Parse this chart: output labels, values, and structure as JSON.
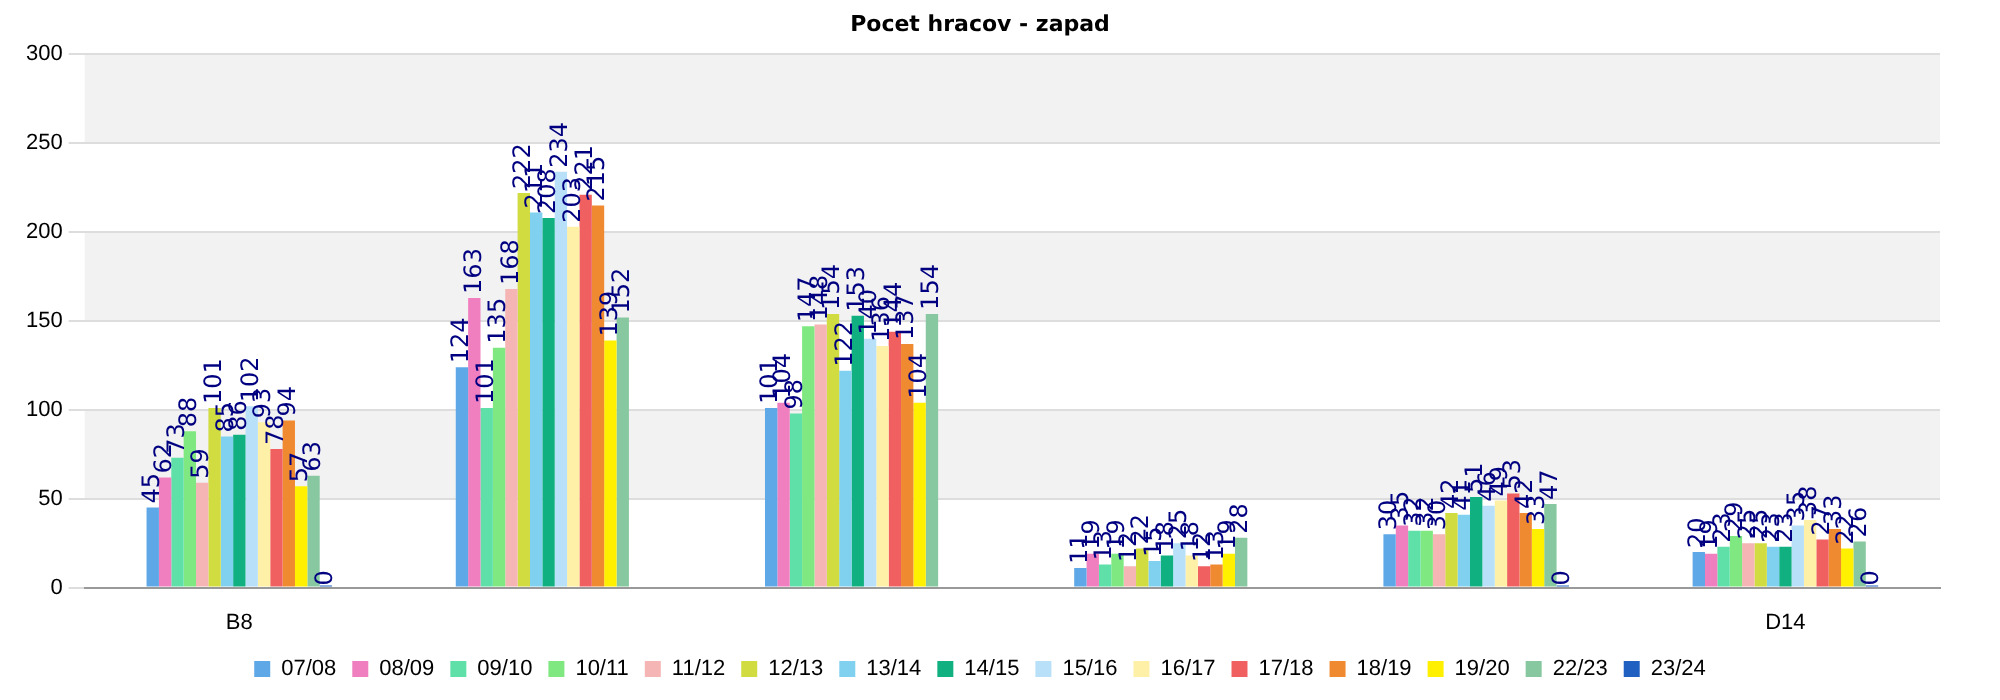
{
  "chart_data": {
    "type": "bar",
    "title": "Pocet hracov - zapad",
    "categories": [
      "B8",
      null,
      null,
      null,
      null,
      "D14"
    ],
    "series": [
      {
        "name": "07/08",
        "color": "#5fa8e8",
        "values": [
          45,
          124,
          101,
          11,
          30,
          20
        ]
      },
      {
        "name": "08/09",
        "color": "#f07fbf",
        "values": [
          62,
          163,
          104,
          19,
          35,
          19
        ]
      },
      {
        "name": "09/10",
        "color": "#5fe0a8",
        "values": [
          73,
          101,
          98,
          13,
          32,
          23
        ]
      },
      {
        "name": "10/11",
        "color": "#80e880",
        "values": [
          88,
          135,
          147,
          19,
          32,
          29
        ]
      },
      {
        "name": "11/12",
        "color": "#f5b5b5",
        "values": [
          59,
          168,
          148,
          12,
          30,
          25
        ]
      },
      {
        "name": "12/13",
        "color": "#d0dc40",
        "values": [
          101,
          222,
          154,
          22,
          42,
          25
        ]
      },
      {
        "name": "13/14",
        "color": "#80d0f0",
        "values": [
          85,
          211,
          122,
          15,
          41,
          23
        ]
      },
      {
        "name": "14/15",
        "color": "#10b080",
        "values": [
          86,
          208,
          153,
          18,
          51,
          23
        ]
      },
      {
        "name": "15/16",
        "color": "#b8e0f8",
        "values": [
          102,
          234,
          140,
          25,
          46,
          35
        ]
      },
      {
        "name": "16/17",
        "color": "#fff0a8",
        "values": [
          93,
          203,
          136,
          18,
          49,
          38
        ]
      },
      {
        "name": "17/18",
        "color": "#f06060",
        "values": [
          78,
          221,
          144,
          12,
          53,
          27
        ]
      },
      {
        "name": "18/19",
        "color": "#f08a30",
        "values": [
          94,
          215,
          137,
          13,
          42,
          33
        ]
      },
      {
        "name": "19/20",
        "color": "#fff000",
        "values": [
          57,
          139,
          104,
          19,
          33,
          22
        ]
      },
      {
        "name": "22/23",
        "color": "#88c8a0",
        "values": [
          63,
          152,
          154,
          28,
          47,
          26
        ]
      },
      {
        "name": "23/24",
        "color": "#2060c0",
        "values": [
          0,
          null,
          null,
          null,
          0,
          0
        ]
      }
    ],
    "ylim": [
      0,
      300
    ],
    "yticks": [
      0,
      50,
      100,
      150,
      200,
      250,
      300
    ],
    "grid": "y",
    "legend": "bottom",
    "data_labels": true
  }
}
